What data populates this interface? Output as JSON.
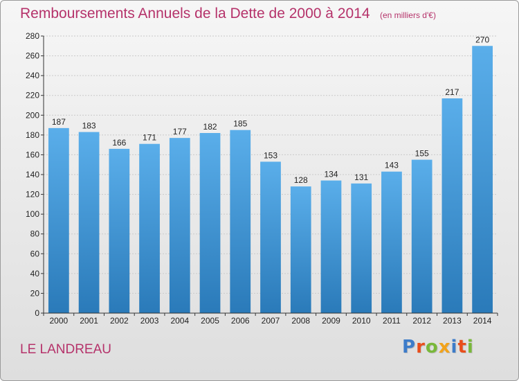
{
  "header": {
    "title": "Remboursements Annuels de la Dette de 2000 à 2014",
    "subtitle": "(en milliers d'€)"
  },
  "footer": {
    "commune": "LE LANDREAU",
    "logo": [
      "P",
      "r",
      "o",
      "x",
      "i",
      "t",
      "i"
    ],
    "logo_colors": [
      "#3d7cc9",
      "#e94e1b",
      "#79b83a",
      "#f2a31b",
      "#3d7cc9",
      "#e94e1b",
      "#79b83a"
    ]
  },
  "colors": {
    "bar_top": "#5aaeea",
    "bar_bottom": "#2a7ab9",
    "grid": "#c9c9c9",
    "axis": "#333333"
  },
  "chart_data": {
    "type": "bar",
    "title": "Remboursements Annuels de la Dette de 2000 à 2014",
    "subtitle": "(en milliers d'€)",
    "xlabel": "",
    "ylabel": "",
    "categories": [
      "2000",
      "2001",
      "2002",
      "2003",
      "2004",
      "2005",
      "2006",
      "2007",
      "2008",
      "2009",
      "2010",
      "2011",
      "2012",
      "2013",
      "2014"
    ],
    "values": [
      187,
      183,
      166,
      171,
      177,
      182,
      185,
      153,
      128,
      134,
      131,
      143,
      155,
      217,
      270
    ],
    "ylim": [
      0,
      280
    ],
    "yticks": [
      0,
      20,
      40,
      60,
      80,
      100,
      120,
      140,
      160,
      180,
      200,
      220,
      240,
      260,
      280
    ],
    "grid": true,
    "legend": "none"
  }
}
